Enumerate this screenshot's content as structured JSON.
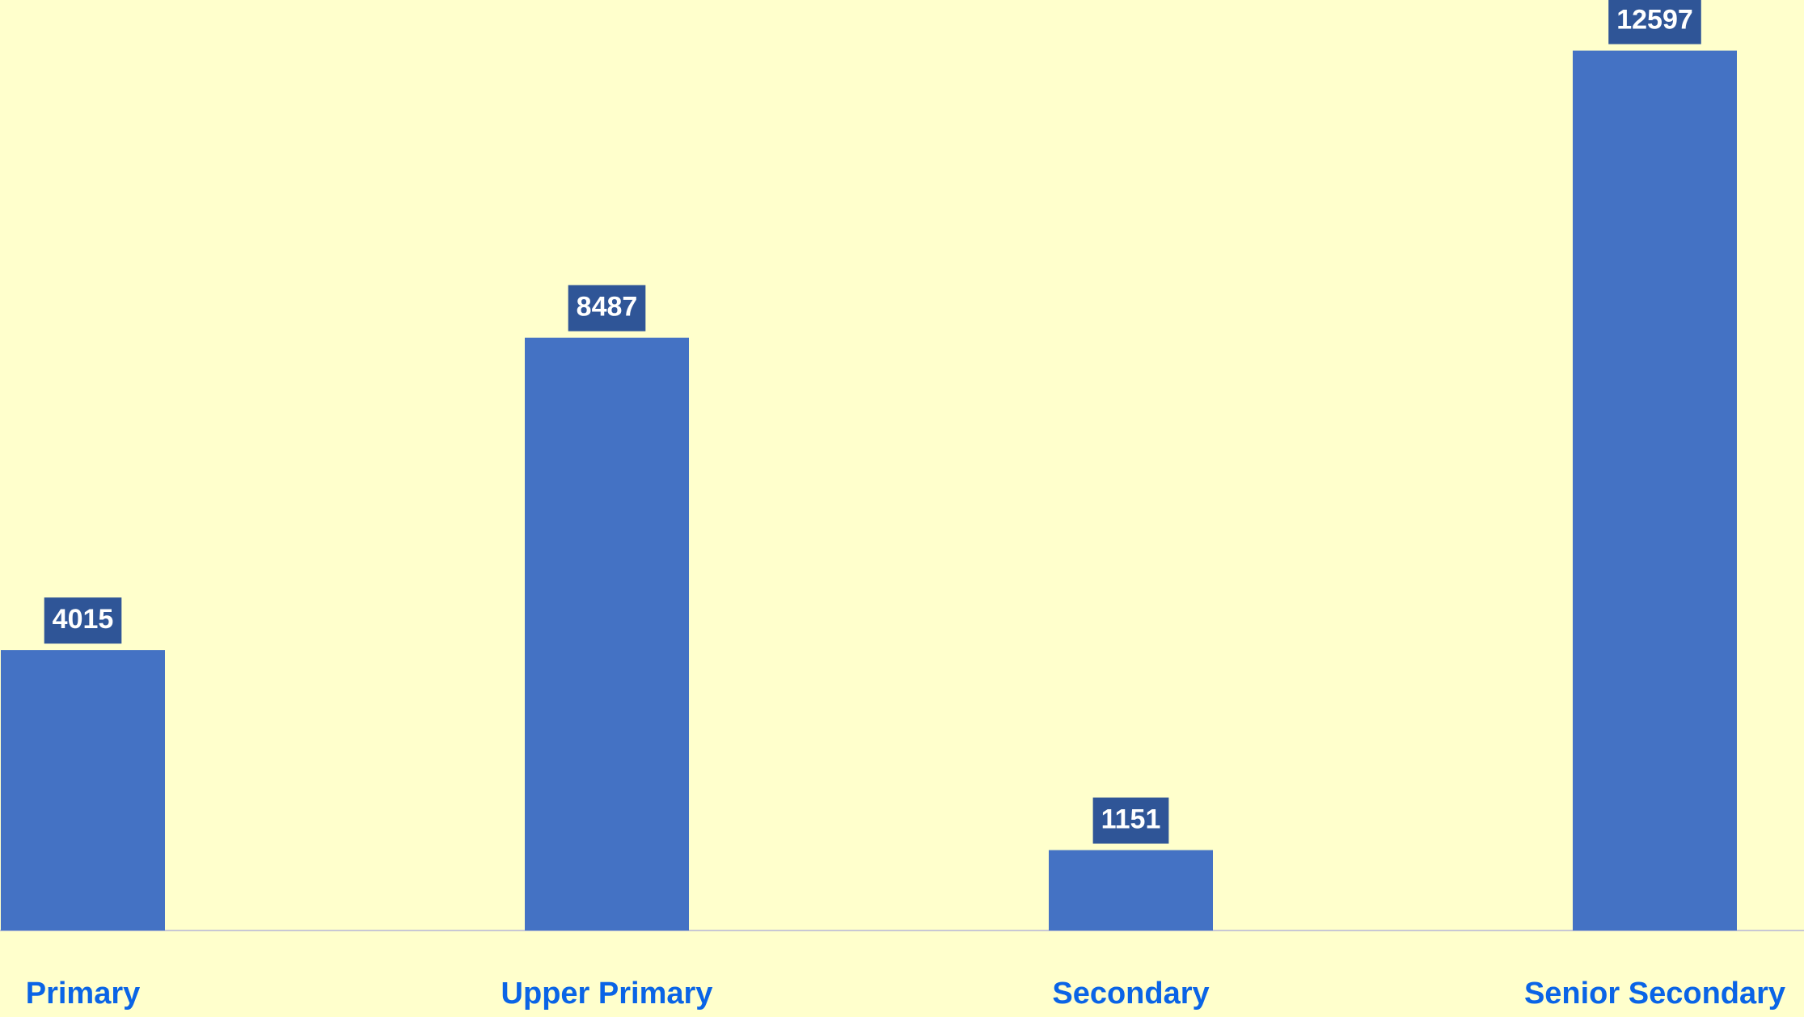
{
  "chart_data": {
    "type": "bar",
    "categories": [
      "Primary",
      "Upper Primary",
      "Secondary",
      "Senior Secondary"
    ],
    "values": [
      4015,
      8487,
      1151,
      12597
    ],
    "color": "#4472c4",
    "label_box_color": "#2f5597"
  }
}
